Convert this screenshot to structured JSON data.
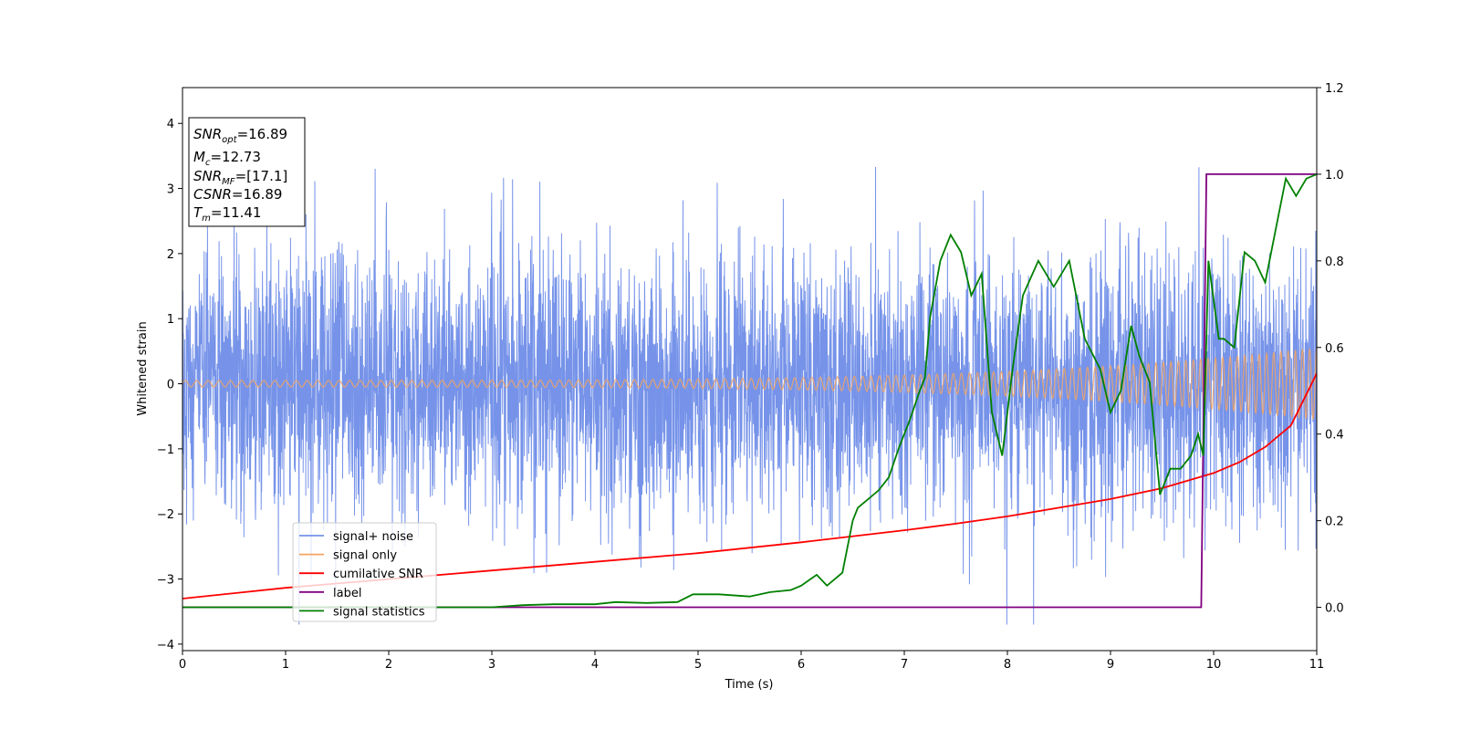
{
  "chart_data": {
    "type": "line",
    "title": "",
    "xlabel": "Time (s)",
    "ylabel": "Whitened strain",
    "y2label": "",
    "xlim": [
      0,
      11
    ],
    "ylim": [
      -4.1,
      4.55
    ],
    "y2lim": [
      -0.1,
      1.2
    ],
    "xticks": [
      0,
      1,
      2,
      3,
      4,
      5,
      6,
      7,
      8,
      9,
      10,
      11
    ],
    "yticks": [
      -4,
      -3,
      -2,
      -1,
      0,
      1,
      2,
      3,
      4
    ],
    "y2ticks": [
      0.0,
      0.2,
      0.4,
      0.6,
      0.8,
      1.0,
      1.2
    ],
    "grid": false,
    "legend_position": "lower-left",
    "annotation": {
      "lines": [
        {
          "main": "SNR",
          "sub": "opt",
          "value": "=16.89"
        },
        {
          "main": "M",
          "sub": "c",
          "value": "=12.73"
        },
        {
          "main": "SNR",
          "sub": "MF",
          "value": "=[17.1]"
        },
        {
          "main": "CSNR",
          "sub": "",
          "value": "=16.89"
        },
        {
          "main": "T",
          "sub": "m",
          "value": "=11.41"
        }
      ]
    },
    "series": [
      {
        "name": "signal+ noise",
        "axis": "left",
        "color": "#4169e1",
        "kind": "noise",
        "sigma": 1.0,
        "y_range_observed": [
          -3.7,
          4.2
        ]
      },
      {
        "name": "signal only",
        "axis": "left",
        "color": "#f4a460",
        "kind": "chirp",
        "amplitude_start": 0.05,
        "amplitude_end": 0.55
      },
      {
        "name": "cumilative SNR",
        "axis": "right",
        "color": "#ff0000",
        "x": [
          0,
          1,
          2,
          3,
          4,
          5,
          6,
          7,
          7.5,
          8,
          8.5,
          9,
          9.5,
          10,
          10.25,
          10.5,
          10.75,
          11
        ],
        "y": [
          0.02,
          0.045,
          0.065,
          0.085,
          0.105,
          0.125,
          0.15,
          0.178,
          0.193,
          0.21,
          0.23,
          0.25,
          0.275,
          0.31,
          0.335,
          0.37,
          0.42,
          0.54
        ]
      },
      {
        "name": "label",
        "axis": "right",
        "color": "#800080",
        "x": [
          0,
          9.88,
          9.93,
          11
        ],
        "y": [
          0,
          0,
          1,
          1
        ]
      },
      {
        "name": "signal statistics",
        "axis": "right",
        "color": "#008000",
        "x": [
          0,
          0.5,
          1,
          1.5,
          2,
          2.5,
          3,
          3.3,
          3.6,
          4,
          4.2,
          4.5,
          4.8,
          4.95,
          5.2,
          5.5,
          5.7,
          5.9,
          6.0,
          6.15,
          6.25,
          6.3,
          6.4,
          6.5,
          6.55,
          6.65,
          6.75,
          6.85,
          6.95,
          7.05,
          7.15,
          7.2,
          7.25,
          7.35,
          7.45,
          7.55,
          7.65,
          7.75,
          7.85,
          7.95,
          8.05,
          8.15,
          8.3,
          8.45,
          8.6,
          8.75,
          8.9,
          9.0,
          9.1,
          9.2,
          9.28,
          9.38,
          9.48,
          9.58,
          9.68,
          9.78,
          9.85,
          9.9,
          9.95,
          10.05,
          10.1,
          10.2,
          10.3,
          10.4,
          10.5,
          10.6,
          10.7,
          10.8,
          10.9,
          11.0
        ],
        "y": [
          0.0,
          0.0,
          0.0,
          0.0,
          0.0,
          0.0,
          0.0,
          0.005,
          0.007,
          0.007,
          0.012,
          0.01,
          0.012,
          0.03,
          0.03,
          0.025,
          0.035,
          0.04,
          0.05,
          0.075,
          0.05,
          0.06,
          0.08,
          0.2,
          0.23,
          0.25,
          0.27,
          0.3,
          0.37,
          0.43,
          0.5,
          0.53,
          0.67,
          0.8,
          0.86,
          0.82,
          0.72,
          0.77,
          0.45,
          0.35,
          0.55,
          0.72,
          0.8,
          0.74,
          0.8,
          0.62,
          0.55,
          0.45,
          0.5,
          0.65,
          0.58,
          0.52,
          0.26,
          0.32,
          0.32,
          0.35,
          0.4,
          0.35,
          0.8,
          0.62,
          0.62,
          0.6,
          0.82,
          0.8,
          0.75,
          0.87,
          0.99,
          0.95,
          0.99,
          1.0
        ]
      }
    ]
  }
}
